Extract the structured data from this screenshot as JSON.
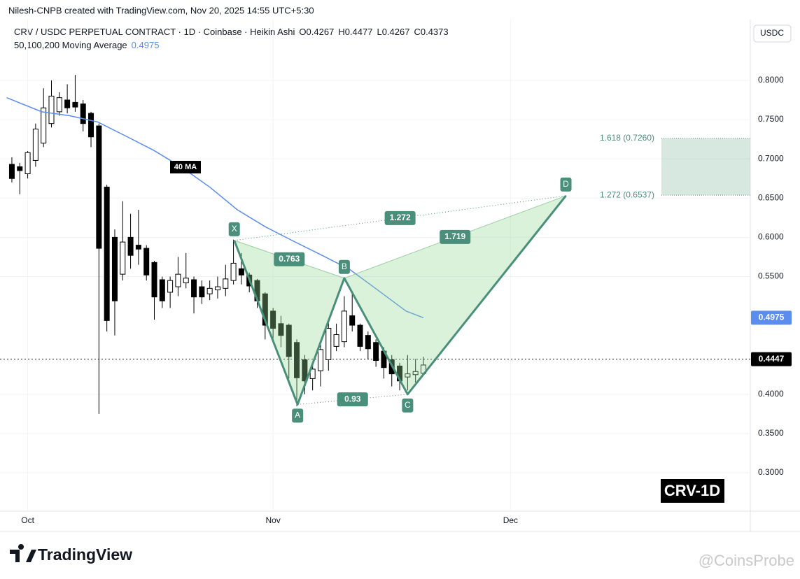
{
  "page": {
    "author_line": "Nilesh-CNPB created with TradingView.com, Nov 20, 2025 14:55 UTC+5:30",
    "badge": "CRV-1D",
    "brand": "TradingView",
    "watermark": "@CoinsProbe"
  },
  "chart_data": {
    "type": "candlestick",
    "title": "CRV / USDC PERPETUAL CONTRACT · 1D · Coinbase · Heikin Ashi",
    "ohlc_prefixes": [
      "O",
      "H",
      "L",
      "C"
    ],
    "currency": "USDC",
    "x": [
      -2,
      -1,
      0,
      1,
      2,
      3,
      4,
      5,
      6,
      7,
      8,
      9,
      10,
      11,
      12,
      13,
      14,
      15,
      16,
      17,
      18,
      19,
      20,
      21,
      22,
      23,
      24,
      25,
      26,
      27,
      28,
      29,
      30,
      31,
      32,
      33,
      34,
      35,
      36,
      37,
      38,
      39,
      40,
      41,
      42,
      43,
      44,
      45,
      46,
      47,
      48,
      49,
      50
    ],
    "open": [
      0.693,
      0.69,
      0.681,
      0.698,
      0.72,
      0.745,
      0.76,
      0.775,
      0.772,
      0.77,
      0.758,
      0.742,
      0.664,
      0.6,
      0.553,
      0.6,
      0.59,
      0.586,
      0.568,
      0.546,
      0.53,
      0.537,
      0.542,
      0.546,
      0.537,
      0.528,
      0.533,
      0.535,
      0.545,
      0.56,
      0.552,
      0.545,
      0.528,
      0.506,
      0.49,
      0.488,
      0.466,
      0.444,
      0.42,
      0.43,
      0.444,
      0.461,
      0.467,
      0.5,
      0.488,
      0.475,
      0.466,
      0.455,
      0.444,
      0.436,
      0.422,
      0.425,
      0.4267
    ],
    "high": [
      0.702,
      0.695,
      0.71,
      0.745,
      0.79,
      0.8,
      0.785,
      0.795,
      0.807,
      0.775,
      0.76,
      0.745,
      0.667,
      0.61,
      0.646,
      0.63,
      0.635,
      0.59,
      0.57,
      0.55,
      0.55,
      0.575,
      0.58,
      0.55,
      0.545,
      0.545,
      0.55,
      0.565,
      0.597,
      0.58,
      0.555,
      0.547,
      0.53,
      0.51,
      0.5,
      0.49,
      0.47,
      0.45,
      0.44,
      0.465,
      0.495,
      0.49,
      0.525,
      0.53,
      0.49,
      0.48,
      0.47,
      0.46,
      0.45,
      0.44,
      0.45,
      0.445,
      0.4477
    ],
    "low": [
      0.67,
      0.655,
      0.675,
      0.69,
      0.715,
      0.74,
      0.755,
      0.758,
      0.76,
      0.735,
      0.715,
      0.375,
      0.48,
      0.475,
      0.545,
      0.56,
      0.565,
      0.545,
      0.495,
      0.51,
      0.51,
      0.525,
      0.535,
      0.503,
      0.515,
      0.52,
      0.522,
      0.525,
      0.54,
      0.54,
      0.53,
      0.51,
      0.47,
      0.47,
      0.46,
      0.42,
      0.385,
      0.4,
      0.405,
      0.41,
      0.43,
      0.455,
      0.46,
      0.48,
      0.455,
      0.445,
      0.435,
      0.42,
      0.41,
      0.405,
      0.405,
      0.415,
      0.4267
    ],
    "close": [
      0.675,
      0.685,
      0.708,
      0.738,
      0.765,
      0.78,
      0.778,
      0.765,
      0.766,
      0.745,
      0.728,
      0.586,
      0.494,
      0.519,
      0.594,
      0.577,
      0.585,
      0.552,
      0.524,
      0.519,
      0.545,
      0.553,
      0.548,
      0.524,
      0.524,
      0.535,
      0.537,
      0.547,
      0.567,
      0.552,
      0.538,
      0.519,
      0.488,
      0.484,
      0.475,
      0.448,
      0.421,
      0.417,
      0.432,
      0.457,
      0.484,
      0.476,
      0.506,
      0.488,
      0.461,
      0.458,
      0.443,
      0.434,
      0.426,
      0.417,
      0.426,
      0.429,
      0.4373
    ],
    "up_color": "#ffffff",
    "down_color": "#000000",
    "ma": {
      "name": "50,100,200 Moving Average",
      "tag": "40 MA",
      "color": "#5b8def",
      "x": [
        -2.65,
        1.77,
        5.3,
        8.85,
        12.4,
        15.9,
        19.5,
        23.0,
        26.5,
        30.1,
        33.6,
        37.2,
        40.7,
        44.2,
        47.8,
        50
      ],
      "values": [
        0.778,
        0.76,
        0.755,
        0.747,
        0.729,
        0.711,
        0.689,
        0.664,
        0.635,
        0.613,
        0.595,
        0.577,
        0.559,
        0.533,
        0.506,
        0.4975
      ]
    },
    "last_price": 0.4447,
    "pattern": {
      "color": "#4a8f7a",
      "points": [
        {
          "label": "X",
          "x": 26.1,
          "y": 0.596
        },
        {
          "label": "A",
          "x": 34.1,
          "y": 0.387
        },
        {
          "label": "B",
          "x": 40.0,
          "y": 0.548
        },
        {
          "label": "C",
          "x": 48.0,
          "y": 0.4
        },
        {
          "label": "D",
          "x": 68.0,
          "y": 0.653
        }
      ],
      "ratios": [
        0.763,
        1.272,
        1.719,
        0.93
      ]
    },
    "fib_levels": [
      {
        "value": 0.726,
        "label": "1.618 (0.7260)"
      },
      {
        "value": 0.6537,
        "label": "1.272 (0.6537)"
      }
    ],
    "xlim": [
      -3.5,
      91.3
    ],
    "xticks": [
      {
        "value": 0,
        "label": "Oct"
      },
      {
        "value": 31,
        "label": "Nov"
      },
      {
        "value": 61,
        "label": "Dec"
      }
    ],
    "ylim": [
      0.2519,
      0.8775
    ],
    "yticks": [
      {
        "value": 0.8,
        "label": "0.8000"
      },
      {
        "value": 0.75,
        "label": "0.7500"
      },
      {
        "value": 0.7,
        "label": "0.7000"
      },
      {
        "value": 0.65,
        "label": "0.6500"
      },
      {
        "value": 0.6,
        "label": "0.6000"
      },
      {
        "value": 0.55,
        "label": "0.5500"
      },
      {
        "value": 0.4,
        "label": "0.4000"
      },
      {
        "value": 0.35,
        "label": "0.3500"
      },
      {
        "value": 0.3,
        "label": "0.3000"
      }
    ],
    "grid": true
  }
}
